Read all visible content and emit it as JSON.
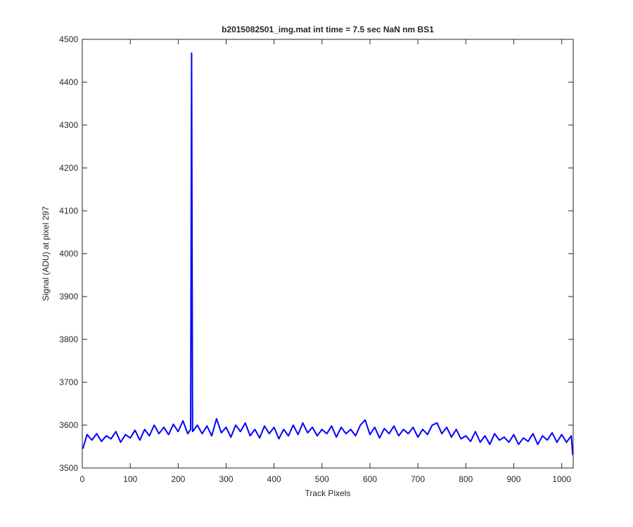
{
  "chart_data": {
    "type": "line",
    "title": "b2015082501_img.mat int time = 7.5 sec  NaN nm BS1",
    "x_label": "Track Pixels",
    "y_label": "Signal (ADU) at pixel 297",
    "x": [
      1,
      10,
      20,
      30,
      40,
      50,
      60,
      70,
      80,
      90,
      100,
      110,
      120,
      130,
      140,
      150,
      160,
      170,
      180,
      190,
      200,
      210,
      220,
      226,
      228,
      230,
      240,
      250,
      260,
      270,
      280,
      290,
      300,
      310,
      320,
      330,
      340,
      350,
      360,
      370,
      380,
      390,
      400,
      410,
      420,
      430,
      440,
      450,
      460,
      470,
      480,
      490,
      500,
      510,
      520,
      530,
      540,
      550,
      560,
      570,
      580,
      590,
      600,
      610,
      620,
      630,
      640,
      650,
      660,
      670,
      680,
      690,
      700,
      710,
      720,
      730,
      740,
      750,
      760,
      770,
      780,
      790,
      800,
      810,
      820,
      830,
      840,
      850,
      860,
      870,
      880,
      890,
      900,
      910,
      920,
      930,
      940,
      950,
      960,
      970,
      980,
      990,
      1000,
      1010,
      1020,
      1023
    ],
    "series": [
      {
        "color": "#0000ff",
        "values": [
          3545,
          3578,
          3565,
          3580,
          3562,
          3575,
          3568,
          3585,
          3560,
          3578,
          3570,
          3588,
          3565,
          3590,
          3575,
          3600,
          3580,
          3595,
          3578,
          3602,
          3585,
          3610,
          3580,
          3590,
          4468,
          3585,
          3600,
          3580,
          3598,
          3575,
          3615,
          3582,
          3595,
          3572,
          3600,
          3585,
          3605,
          3575,
          3590,
          3570,
          3598,
          3580,
          3595,
          3568,
          3590,
          3575,
          3600,
          3578,
          3605,
          3582,
          3595,
          3575,
          3590,
          3580,
          3598,
          3572,
          3595,
          3580,
          3590,
          3575,
          3600,
          3612,
          3578,
          3595,
          3570,
          3592,
          3580,
          3598,
          3575,
          3590,
          3580,
          3595,
          3572,
          3590,
          3578,
          3600,
          3605,
          3580,
          3595,
          3572,
          3590,
          3568,
          3575,
          3562,
          3585,
          3560,
          3575,
          3555,
          3580,
          3565,
          3572,
          3560,
          3578,
          3555,
          3570,
          3562,
          3580,
          3555,
          3575,
          3565,
          3582,
          3560,
          3578,
          3560,
          3575,
          3530
        ]
      }
    ],
    "xlim": [
      0,
      1024
    ],
    "ylim": [
      3500,
      4500
    ],
    "xticks": [
      0,
      100,
      200,
      300,
      400,
      500,
      600,
      700,
      800,
      900,
      1000
    ],
    "yticks": [
      3500,
      3600,
      3700,
      3800,
      3900,
      4000,
      4100,
      4200,
      4300,
      4400,
      4500
    ]
  }
}
